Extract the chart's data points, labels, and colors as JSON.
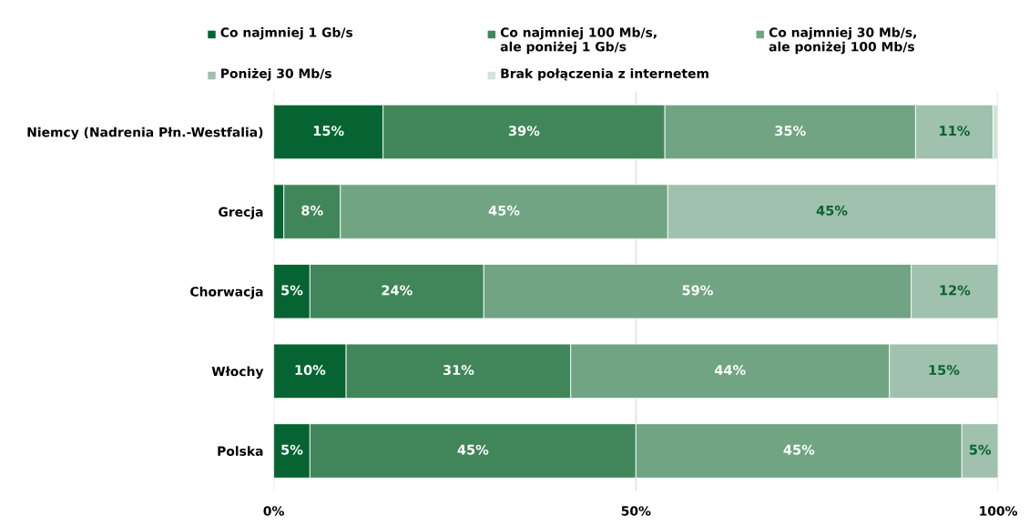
{
  "chart_data": {
    "type": "bar",
    "orientation": "horizontal",
    "stacked": true,
    "categories": [
      "Niemcy (Nadrenia Płn.-Westfalia)",
      "Grecja",
      "Chorwacja",
      "Włochy",
      "Polska"
    ],
    "series": [
      {
        "name": "Co najmniej 1 Gb/s",
        "color": "#056431",
        "values": [
          15.1,
          1.4,
          5,
          10,
          5
        ],
        "value_labels": [
          "15%",
          null,
          "5%",
          "10%",
          "5%"
        ]
      },
      {
        "name": "Co najmniej 100 Mb/s,\nale poniżej 1 Gb/s",
        "color": "#41865b",
        "values": [
          38.9,
          7.8,
          24,
          31,
          45
        ],
        "value_labels": [
          "39%",
          "8%",
          "24%",
          "31%",
          "45%"
        ]
      },
      {
        "name": "Co najmniej 30 Mb/s,\nale poniżej 100 Mb/s",
        "color": "#71a483",
        "values": [
          34.6,
          45.2,
          59,
          44,
          45
        ],
        "value_labels": [
          "35%",
          "45%",
          "59%",
          "44%",
          "45%"
        ]
      },
      {
        "name": "Poniżej 30 Mb/s",
        "color": "#a0c1ad",
        "values": [
          10.7,
          45.3,
          12,
          15,
          5
        ],
        "value_labels": [
          "11%",
          "45%",
          "12%",
          "15%",
          "5%"
        ]
      },
      {
        "name": "Brak połączenia z internetem",
        "color": "#d2e3d8",
        "values": [
          0.7,
          null,
          null,
          null,
          null
        ],
        "value_labels": [
          null,
          null,
          null,
          null,
          null
        ]
      }
    ],
    "xlim": [
      0,
      100
    ],
    "xticks": [
      {
        "value": 0,
        "label": "0%"
      },
      {
        "value": 50,
        "label": "50%"
      },
      {
        "value": 100,
        "label": "100%"
      }
    ],
    "grid": "x",
    "legend": "top"
  }
}
